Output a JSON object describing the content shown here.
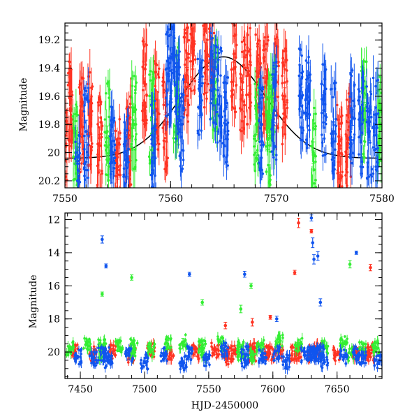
{
  "figure": {
    "panels": [
      {
        "id": "top",
        "ylabel": "Magnitude",
        "xlabel": "",
        "xlim": [
          7550,
          7580
        ],
        "ylim": [
          20.25,
          19.08
        ],
        "y_inverted": true,
        "xticks": [
          7550,
          7560,
          7570,
          7580
        ],
        "yticks": [
          19.2,
          19.4,
          19.6,
          19.8,
          20,
          20.2
        ],
        "ytick_labels": [
          "19.2",
          "19.4",
          "19.6",
          "19.8",
          "20",
          "20.2"
        ],
        "model_curve": {
          "name": "",
          "center": 7565.0,
          "sigma": 4.0,
          "peak_mag": 19.32,
          "baseline_mag": 20.04,
          "color": "#000000"
        }
      },
      {
        "id": "bottom",
        "ylabel": "Magnitude",
        "xlabel": "HJD-2450000",
        "xlim": [
          7438,
          7685
        ],
        "ylim": [
          21.6,
          11.6
        ],
        "y_inverted": true,
        "xticks": [
          7450,
          7500,
          7550,
          7600,
          7650
        ],
        "yticks": [
          12,
          14,
          16,
          18,
          20
        ],
        "ytick_labels": [
          "12",
          "14",
          "16",
          "18",
          "20"
        ]
      }
    ],
    "colors": {
      "red": "#ff3322",
      "green": "#33ee33",
      "blue": "#1155ee",
      "axis": "#000000"
    }
  },
  "chart_data": [
    {
      "type": "scatter",
      "title": "",
      "xlabel": "",
      "ylabel": "Magnitude",
      "xlim": [
        7550,
        7580
      ],
      "ylim": [
        20.25,
        19.08
      ],
      "series": [
        {
          "color": "red",
          "x": [
            7550.0,
            7550.5,
            7551.5,
            7552.4,
            7553.3,
            7555.0,
            7556.0,
            7557.5,
            7558.7,
            7559.5,
            7561.5,
            7562.1,
            7563.3,
            7563.9,
            7566.0,
            7566.8,
            7567.4,
            7568.3,
            7569.0,
            7570.0,
            7570.8,
            7576.0,
            7576.8
          ],
          "y": [
            20.05,
            19.7,
            19.8,
            19.75,
            19.95,
            20.1,
            19.9,
            19.5,
            19.7,
            19.8,
            19.45,
            19.25,
            19.35,
            19.3,
            19.4,
            19.5,
            19.45,
            19.5,
            19.5,
            19.5,
            19.6,
            19.95,
            19.9
          ]
        },
        {
          "color": "green",
          "x": [
            7551.0,
            7554.0,
            7556.5,
            7558.2,
            7560.5,
            7564.2,
            7568.1,
            7569.2,
            7569.6,
            7573.5,
            7578.3,
            7579.8
          ],
          "y": [
            20.0,
            19.85,
            19.8,
            19.75,
            19.6,
            19.5,
            19.8,
            19.9,
            19.7,
            20.0,
            19.7,
            19.8
          ]
        },
        {
          "color": "blue",
          "x": [
            7551.2,
            7552.0,
            7554.5,
            7555.8,
            7558.4,
            7559.8,
            7560.2,
            7560.6,
            7561.0,
            7562.8,
            7564.0,
            7564.6,
            7565.2,
            7568.6,
            7569.8,
            7572.4,
            7573.0,
            7574.5,
            7575.4,
            7577.2,
            7578.0,
            7578.8,
            7579.4
          ],
          "y": [
            20.2,
            19.85,
            20.0,
            20.05,
            19.95,
            19.4,
            19.3,
            19.6,
            19.8,
            19.6,
            19.5,
            19.6,
            19.8,
            19.8,
            19.7,
            19.6,
            19.65,
            19.7,
            19.85,
            19.75,
            19.8,
            19.85,
            19.8
          ]
        }
      ]
    },
    {
      "type": "scatter",
      "title": "",
      "xlabel": "HJD-2450000",
      "ylabel": "Magnitude",
      "xlim": [
        7438,
        7685
      ],
      "ylim": [
        21.6,
        11.6
      ],
      "series": [
        {
          "color": "red",
          "x": [
            7445,
            7460,
            7475,
            7490,
            7505,
            7520,
            7540,
            7555,
            7565,
            7570,
            7585,
            7595,
            7605,
            7620,
            7635,
            7650,
            7665,
            7675,
            7617,
            7630,
            7620,
            7676,
            7598,
            7584,
            7563
          ],
          "y": [
            20.0,
            20.1,
            20.0,
            20.2,
            19.9,
            20.1,
            20.0,
            19.9,
            20.3,
            20.0,
            19.9,
            20.1,
            19.9,
            20.0,
            19.8,
            20.1,
            20.0,
            19.9,
            15.2,
            12.7,
            12.2,
            14.9,
            17.9,
            18.2,
            18.4
          ]
        },
        {
          "color": "green",
          "x": [
            7442,
            7455,
            7467,
            7480,
            7492,
            7505,
            7518,
            7530,
            7545,
            7560,
            7575,
            7590,
            7605,
            7620,
            7640,
            7655,
            7670,
            7680,
            7467,
            7490,
            7545,
            7583,
            7575,
            7660
          ],
          "y": [
            19.8,
            19.5,
            19.6,
            19.7,
            19.6,
            19.9,
            19.5,
            19.4,
            19.6,
            19.5,
            19.7,
            19.6,
            19.4,
            19.6,
            19.7,
            19.5,
            19.8,
            19.7,
            16.5,
            15.5,
            17.0,
            16.0,
            17.4,
            14.7
          ]
        },
        {
          "color": "blue",
          "x": [
            7448,
            7460,
            7472,
            7488,
            7500,
            7515,
            7530,
            7548,
            7562,
            7578,
            7592,
            7610,
            7625,
            7640,
            7655,
            7670,
            7682,
            7467,
            7470,
            7535,
            7578,
            7630,
            7631,
            7632,
            7635,
            7665,
            7637,
            7603
          ],
          "y": [
            20.3,
            20.4,
            20.5,
            20.2,
            20.6,
            20.1,
            20.7,
            20.4,
            19.9,
            20.5,
            20.3,
            20.6,
            20.2,
            20.5,
            20.3,
            20.4,
            20.6,
            13.2,
            14.8,
            15.3,
            15.3,
            11.9,
            13.4,
            14.4,
            14.2,
            14.0,
            17.0,
            18.0
          ]
        }
      ]
    }
  ]
}
